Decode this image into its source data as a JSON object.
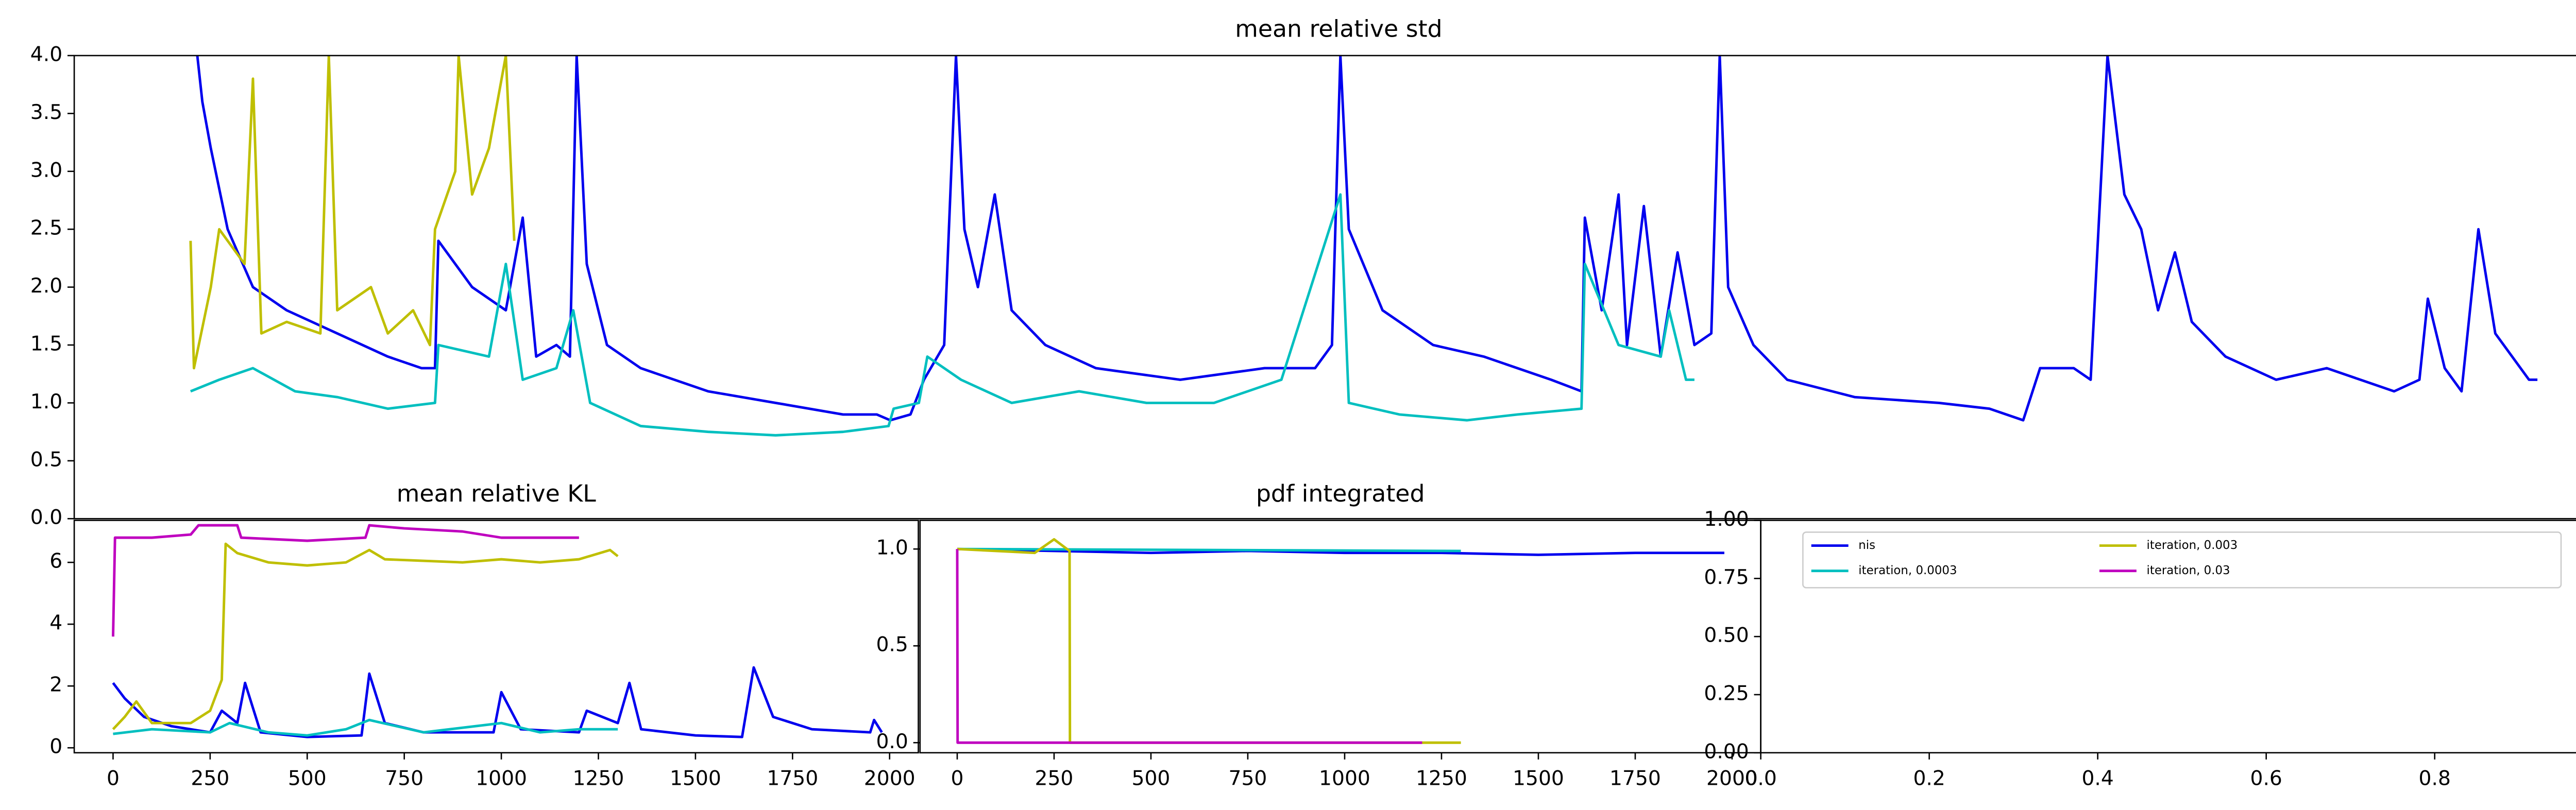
{
  "chart_data": [
    {
      "type": "line",
      "title": "mean relative std",
      "xlim": [
        0,
        1500
      ],
      "ylim": [
        0,
        4
      ],
      "yticks": [
        {
          "value": 0,
          "label": "0.0"
        },
        {
          "value": 0.5,
          "label": "0.5"
        },
        {
          "value": 1,
          "label": "1.0"
        },
        {
          "value": 1.5,
          "label": "1.5"
        },
        {
          "value": 2,
          "label": "2.0"
        },
        {
          "value": 2.5,
          "label": "2.5"
        },
        {
          "value": 3,
          "label": "3.0"
        },
        {
          "value": 3.5,
          "label": "3.5"
        },
        {
          "value": 4,
          "label": "4.0"
        }
      ],
      "series": [
        {
          "color": "#0000ee",
          "x": [
            73,
            76,
            81,
            91,
            106,
            126,
            156,
            186,
            206,
            214,
            216,
            236,
            256,
            266,
            274,
            286,
            294,
            298,
            304,
            316,
            336,
            376,
            416,
            456,
            476,
            484,
            496,
            504,
            516,
            523,
            528,
            536,
            546,
            556,
            576,
            606,
            656,
            706,
            736,
            746,
            751,
            756,
            776,
            806,
            836,
            876,
            894,
            896,
            906,
            916,
            921,
            931,
            941,
            951,
            961,
            971,
            976,
            981,
            996,
            1016,
            1056,
            1106,
            1136,
            1156,
            1166,
            1186,
            1196,
            1206,
            1216,
            1226,
            1236,
            1246,
            1256,
            1276,
            1306,
            1336,
            1356,
            1376,
            1391,
            1396,
            1406,
            1416,
            1426,
            1436,
            1446,
            1456,
            1461
          ],
          "values": [
            4.0,
            3.6,
            3.2,
            2.5,
            2.0,
            1.8,
            1.6,
            1.4,
            1.3,
            1.3,
            2.4,
            2.0,
            1.8,
            2.6,
            1.4,
            1.5,
            1.4,
            4.0,
            2.2,
            1.5,
            1.3,
            1.1,
            1.0,
            0.9,
            0.9,
            0.85,
            0.9,
            1.2,
            1.5,
            4.0,
            2.5,
            2.0,
            2.8,
            1.8,
            1.5,
            1.3,
            1.2,
            1.3,
            1.3,
            1.5,
            4.0,
            2.5,
            1.8,
            1.5,
            1.4,
            1.2,
            1.1,
            2.6,
            1.8,
            2.8,
            1.5,
            2.7,
            1.4,
            2.3,
            1.5,
            1.6,
            4.0,
            2.0,
            1.5,
            1.2,
            1.05,
            1.0,
            0.95,
            0.85,
            1.3,
            1.3,
            1.2,
            4.0,
            2.8,
            2.5,
            1.8,
            2.3,
            1.7,
            1.4,
            1.2,
            1.3,
            1.2,
            1.1,
            1.2,
            1.9,
            1.3,
            1.1,
            2.5,
            1.6,
            1.4,
            1.2,
            1.2
          ]
        },
        {
          "color": "#00bfbf",
          "x": [
            69,
            86,
            106,
            131,
            156,
            186,
            214,
            216,
            246,
            256,
            266,
            286,
            296,
            306,
            336,
            376,
            416,
            456,
            483,
            486,
            501,
            506,
            526,
            556,
            596,
            636,
            676,
            716,
            751,
            756,
            786,
            826,
            856,
            894,
            896,
            916,
            941,
            946,
            956,
            961
          ],
          "values": [
            1.1,
            1.2,
            1.3,
            1.1,
            1.05,
            0.95,
            1.0,
            1.5,
            1.4,
            2.2,
            1.2,
            1.3,
            1.8,
            1.0,
            0.8,
            0.75,
            0.72,
            0.75,
            0.8,
            0.95,
            1.0,
            1.4,
            1.2,
            1.0,
            1.1,
            1.0,
            1.0,
            1.2,
            2.8,
            1.0,
            0.9,
            0.85,
            0.9,
            0.95,
            2.2,
            1.5,
            1.4,
            1.8,
            1.2,
            1.2
          ]
        },
        {
          "color": "#bfbf00",
          "x": [
            69,
            71,
            81,
            86,
            101,
            106,
            111,
            126,
            146,
            151,
            156,
            176,
            186,
            201,
            211,
            214,
            226,
            228,
            236,
            246,
            256,
            261
          ],
          "values": [
            2.4,
            1.3,
            2.0,
            2.5,
            2.2,
            3.8,
            1.6,
            1.7,
            1.6,
            4.0,
            1.8,
            2.0,
            1.6,
            1.8,
            1.5,
            2.5,
            3.0,
            4.0,
            2.8,
            3.2,
            4.0,
            2.4
          ]
        }
      ]
    },
    {
      "type": "line",
      "title": "mean relative KL",
      "xlim": [
        -100,
        2074
      ],
      "ylim": [
        -0.16,
        7.36
      ],
      "xticks": [
        0,
        250,
        500,
        750,
        1000,
        1250,
        1500,
        1750,
        2000
      ],
      "yticks": [
        0,
        2,
        4,
        6
      ],
      "series": [
        {
          "color": "#0000ee",
          "x": [
            0,
            30,
            80,
            150,
            250,
            280,
            320,
            340,
            380,
            500,
            640,
            660,
            700,
            800,
            980,
            1000,
            1050,
            1200,
            1220,
            1300,
            1330,
            1360,
            1500,
            1620,
            1650,
            1700,
            1800,
            1950,
            1960,
            1980
          ],
          "values": [
            2.1,
            1.6,
            1.0,
            0.7,
            0.5,
            1.2,
            0.8,
            2.1,
            0.5,
            0.35,
            0.4,
            2.4,
            0.8,
            0.5,
            0.5,
            1.8,
            0.6,
            0.5,
            1.2,
            0.8,
            2.1,
            0.6,
            0.4,
            0.35,
            2.6,
            1.0,
            0.6,
            0.5,
            0.9,
            0.5
          ]
        },
        {
          "color": "#00bfbf",
          "x": [
            0,
            100,
            250,
            300,
            400,
            500,
            600,
            660,
            800,
            1000,
            1100,
            1200,
            1300
          ],
          "values": [
            0.45,
            0.6,
            0.5,
            0.8,
            0.5,
            0.4,
            0.6,
            0.9,
            0.5,
            0.8,
            0.5,
            0.6,
            0.6
          ]
        },
        {
          "color": "#bfbf00",
          "x": [
            0,
            30,
            60,
            100,
            200,
            250,
            280,
            290,
            320,
            400,
            500,
            600,
            660,
            700,
            900,
            1000,
            1100,
            1200,
            1280,
            1300
          ],
          "values": [
            0.6,
            1.0,
            1.5,
            0.8,
            0.8,
            1.2,
            2.2,
            6.6,
            6.3,
            6.0,
            5.9,
            6.0,
            6.4,
            6.1,
            6.0,
            6.1,
            6.0,
            6.1,
            6.4,
            6.2
          ]
        },
        {
          "color": "#bf00bf",
          "x": [
            0,
            5,
            100,
            200,
            220,
            320,
            330,
            500,
            650,
            660,
            750,
            900,
            1000,
            1200
          ],
          "values": [
            3.6,
            6.8,
            6.8,
            6.9,
            7.2,
            7.2,
            6.8,
            6.7,
            6.8,
            7.2,
            7.1,
            7.0,
            6.8,
            6.8
          ]
        }
      ]
    },
    {
      "type": "line",
      "title": "pdf integrated",
      "xlim": [
        -96,
        2074
      ],
      "ylim": [
        -0.052,
        1.148
      ],
      "xticks": [
        0,
        250,
        500,
        750,
        1000,
        1250,
        1500,
        1750,
        2000
      ],
      "yticks": [
        {
          "value": 0,
          "label": "0.0"
        },
        {
          "value": 0.5,
          "label": "0.5"
        },
        {
          "value": 1,
          "label": "1.0"
        }
      ],
      "series": [
        {
          "color": "#0000ee",
          "x": [
            0,
            250,
            500,
            750,
            1000,
            1250,
            1500,
            1750,
            1980
          ],
          "values": [
            1.0,
            0.99,
            0.98,
            0.99,
            0.98,
            0.98,
            0.97,
            0.98,
            0.98
          ]
        },
        {
          "color": "#00bfbf",
          "x": [
            0,
            1300
          ],
          "values": [
            1.0,
            0.99
          ]
        },
        {
          "color": "#bfbf00",
          "x": [
            0,
            200,
            250,
            290,
            291,
            1300
          ],
          "values": [
            1.0,
            0.98,
            1.05,
            0.99,
            0.0,
            0.0
          ]
        },
        {
          "color": "#bf00bf",
          "x": [
            0,
            1,
            1200
          ],
          "values": [
            1.0,
            0.0,
            0.0
          ]
        }
      ]
    },
    {
      "type": "legend",
      "xlim": [
        0,
        1
      ],
      "ylim": [
        0,
        1
      ],
      "xticks": [
        {
          "value": 0,
          "label": "0.0"
        },
        {
          "value": 0.2,
          "label": "0.2"
        },
        {
          "value": 0.4,
          "label": "0.4"
        },
        {
          "value": 0.6,
          "label": "0.6"
        },
        {
          "value": 0.8,
          "label": "0.8"
        },
        {
          "value": 1,
          "label": "1.0"
        }
      ],
      "yticks": [
        {
          "value": 0,
          "label": "0.00"
        },
        {
          "value": 0.25,
          "label": "0.25"
        },
        {
          "value": 0.5,
          "label": "0.50"
        },
        {
          "value": 0.75,
          "label": "0.75"
        },
        {
          "value": 1,
          "label": "1.00"
        }
      ],
      "legend_loc": "upper center",
      "legend": [
        {
          "name": "nis",
          "color": "#0000ee"
        },
        {
          "name": "iteration, 0.0003",
          "color": "#00bfbf"
        },
        {
          "name": "iteration, 0.003",
          "color": "#bfbf00"
        },
        {
          "name": "iteration, 0.03",
          "color": "#bf00bf"
        }
      ]
    }
  ]
}
